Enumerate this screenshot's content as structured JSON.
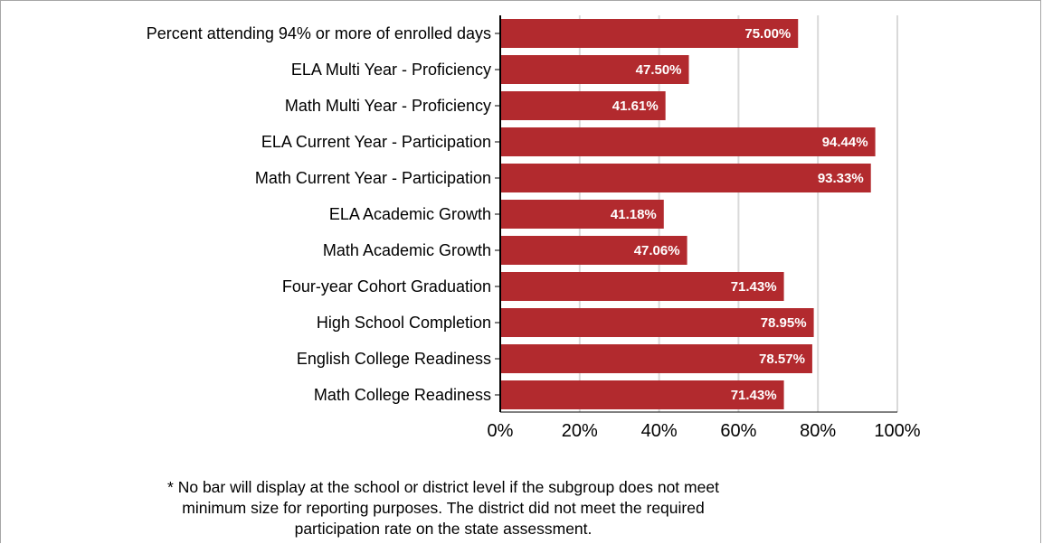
{
  "chart_data": {
    "type": "bar",
    "orientation": "horizontal",
    "categories": [
      "Percent attending 94% or more of enrolled days",
      "ELA Multi Year - Proficiency",
      "Math Multi Year - Proficiency",
      "ELA Current Year - Participation",
      "Math Current Year - Participation",
      "ELA Academic Growth",
      "Math Academic Growth",
      "Four-year Cohort Graduation",
      "High School Completion",
      "English College Readiness",
      "Math College Readiness"
    ],
    "values": [
      75.0,
      47.5,
      41.61,
      94.44,
      93.33,
      41.18,
      47.06,
      71.43,
      78.95,
      78.57,
      71.43
    ],
    "value_labels": [
      "75.00%",
      "47.50%",
      "41.61%",
      "94.44%",
      "93.33%",
      "41.18%",
      "47.06%",
      "71.43%",
      "78.95%",
      "78.57%",
      "71.43%"
    ],
    "xlim": [
      0,
      100
    ],
    "x_ticks": [
      0,
      20,
      40,
      60,
      80,
      100
    ],
    "x_tick_labels": [
      "0%",
      "20%",
      "40%",
      "60%",
      "80%",
      "100%"
    ],
    "grid": "vertical",
    "bar_color": "#b22a2e",
    "title": "",
    "xlabel": "",
    "ylabel": ""
  },
  "footnote": {
    "lines": [
      "* No bar will display at the school or district level if the subgroup does not meet",
      "minimum size for reporting purposes. The district did not meet the required",
      "participation rate on the state assessment."
    ]
  }
}
